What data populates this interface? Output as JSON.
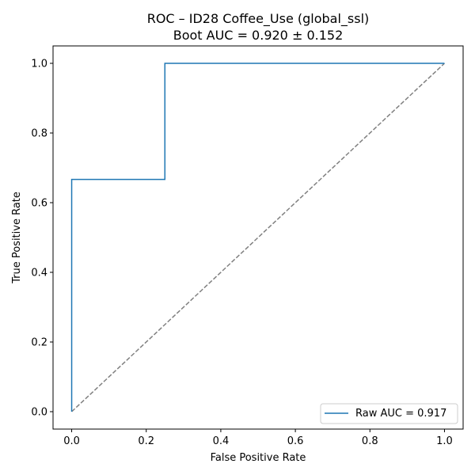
{
  "chart_data": {
    "type": "line",
    "title": "ROC – ID28 Coffee_Use (global_ssl)",
    "subtitle": "Boot AUC = 0.920 ± 0.152",
    "xlabel": "False Positive Rate",
    "ylabel": "True Positive Rate",
    "xlim": [
      -0.05,
      1.05
    ],
    "ylim": [
      -0.05,
      1.05
    ],
    "xticks": [
      0.0,
      0.2,
      0.4,
      0.6,
      0.8,
      1.0
    ],
    "yticks": [
      0.0,
      0.2,
      0.4,
      0.6,
      0.8,
      1.0
    ],
    "xtick_labels": [
      "0.0",
      "0.2",
      "0.4",
      "0.6",
      "0.8",
      "1.0"
    ],
    "ytick_labels": [
      "0.0",
      "0.2",
      "0.4",
      "0.6",
      "0.8",
      "1.0"
    ],
    "grid": false,
    "legend_position": "lower-right",
    "series": [
      {
        "name": "Raw AUC = 0.917",
        "color": "#1f77b4",
        "style": "solid",
        "step": "post",
        "x": [
          0.0,
          0.0,
          0.25,
          0.25,
          1.0
        ],
        "y": [
          0.0,
          0.6667,
          0.6667,
          1.0,
          1.0
        ]
      },
      {
        "color": "#808080",
        "style": "dashed",
        "x": [
          0.0,
          1.0
        ],
        "y": [
          0.0,
          1.0
        ]
      }
    ]
  }
}
